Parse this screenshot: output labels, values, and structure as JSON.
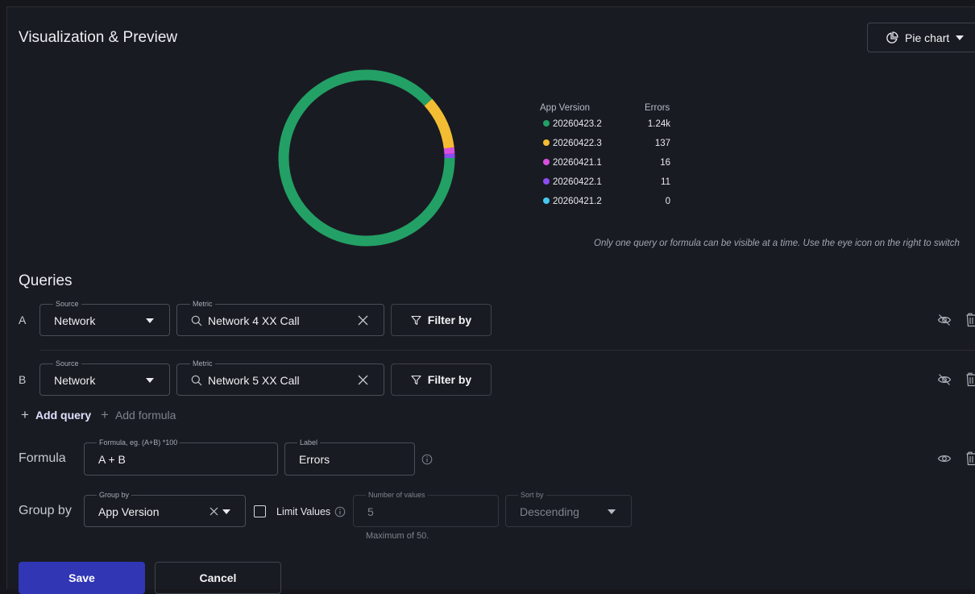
{
  "header": {
    "title": "Visualization & Preview",
    "chart_type_label": "Pie chart"
  },
  "chart_data": {
    "type": "pie",
    "style": "donut",
    "legend_headers": [
      "App Version",
      "Errors"
    ],
    "legend_position": "right",
    "slices": [
      {
        "label": "20260423.2",
        "value": 1240,
        "display": "1.24k",
        "color": "#23a065"
      },
      {
        "label": "20260422.3",
        "value": 137,
        "display": "137",
        "color": "#f2bd32"
      },
      {
        "label": "20260421.1",
        "value": 16,
        "display": "16",
        "color": "#d84fe0"
      },
      {
        "label": "20260422.1",
        "value": 11,
        "display": "11",
        "color": "#8b4cf0"
      },
      {
        "label": "20260421.2",
        "value": 0,
        "display": "0",
        "color": "#45c8ef"
      }
    ]
  },
  "notice": "Only one query or formula can be visible at a time. Use the eye icon on the right to switch",
  "queries": {
    "title": "Queries",
    "source_label": "Source",
    "metric_label": "Metric",
    "filter_label": "Filter by",
    "rows": [
      {
        "letter": "A",
        "source": "Network",
        "metric": "Network 4 XX Call"
      },
      {
        "letter": "B",
        "source": "Network",
        "metric": "Network 5 XX Call"
      }
    ],
    "add_query": "Add query",
    "add_formula": "Add formula"
  },
  "formula": {
    "label": "Formula",
    "formula_legend": "Formula, eg. (A+B) *100",
    "formula_value": "A + B",
    "label_legend": "Label",
    "label_value": "Errors"
  },
  "group_by": {
    "label": "Group by",
    "group_legend": "Group by",
    "group_value": "App Version",
    "limit_values_label": "Limit Values",
    "number_legend": "Number of values",
    "number_value": "5",
    "max_hint": "Maximum of 50.",
    "sort_legend": "Sort by",
    "sort_value": "Descending"
  },
  "actions": {
    "save": "Save",
    "cancel": "Cancel"
  },
  "colors": {
    "accent": "#3036b4",
    "background": "#191b22"
  }
}
